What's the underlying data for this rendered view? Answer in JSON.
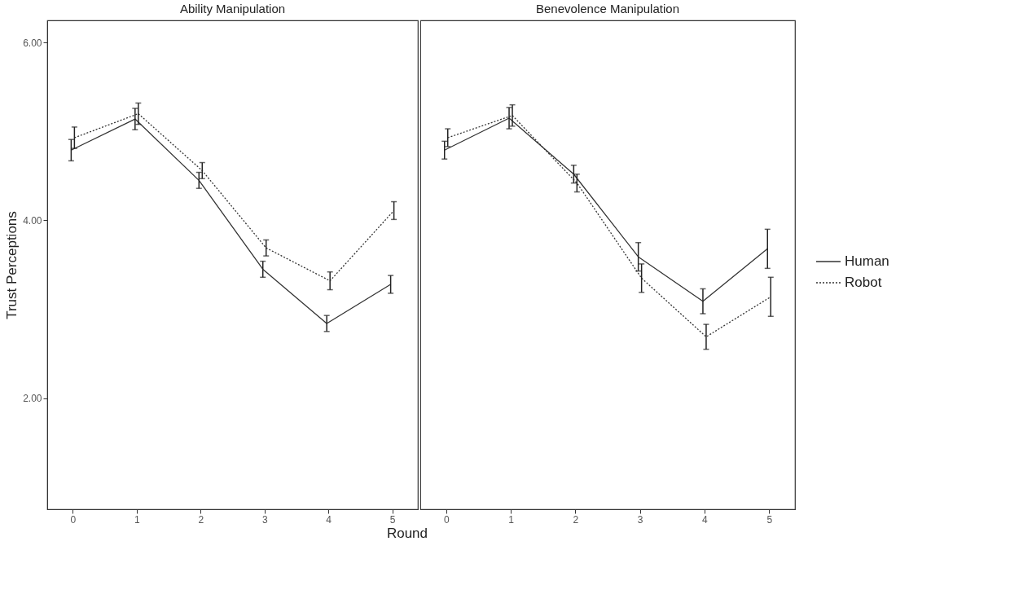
{
  "chart_data": [
    {
      "type": "line",
      "title": "Ability Manipulation",
      "xlabel": "Round",
      "ylabel": "Trust Perceptions",
      "categories": [
        "0",
        "1",
        "2",
        "3",
        "4",
        "5"
      ],
      "ylim": [
        0.75,
        6.25
      ],
      "yticks": [
        {
          "value": 2,
          "label": "2.00"
        },
        {
          "value": 4,
          "label": "4.00"
        },
        {
          "value": 6,
          "label": "6.00"
        }
      ],
      "grid": false,
      "legend": false,
      "marker": "none",
      "series": [
        {
          "color": "#333333",
          "line_style": "solid",
          "values": [
            4.79,
            5.14,
            4.45,
            3.45,
            2.84,
            3.28
          ],
          "errors": [
            0.12,
            0.12,
            0.09,
            0.09,
            0.09,
            0.1
          ]
        },
        {
          "color": "#333333",
          "line_style": "dotted",
          "values": [
            4.93,
            5.2,
            4.56,
            3.69,
            3.32,
            4.11
          ],
          "errors": [
            0.12,
            0.12,
            0.09,
            0.09,
            0.1,
            0.1
          ]
        }
      ]
    },
    {
      "type": "line",
      "title": "Benevolence Manipulation",
      "categories": [
        "0",
        "1",
        "2",
        "3",
        "4",
        "5"
      ],
      "ylim": [
        0.75,
        6.25
      ],
      "tick_labels": "x",
      "grid": false,
      "legend": "right",
      "marker": "none",
      "series": [
        {
          "name": "Human",
          "color": "#333333",
          "line_style": "solid",
          "values": [
            4.79,
            5.15,
            4.52,
            3.59,
            3.09,
            3.68
          ],
          "errors": [
            0.1,
            0.12,
            0.1,
            0.16,
            0.14,
            0.22
          ]
        },
        {
          "name": "Robot",
          "color": "#333333",
          "line_style": "dotted",
          "values": [
            4.93,
            5.18,
            4.42,
            3.35,
            2.69,
            3.14
          ],
          "errors": [
            0.1,
            0.12,
            0.1,
            0.16,
            0.14,
            0.22
          ]
        }
      ]
    }
  ]
}
